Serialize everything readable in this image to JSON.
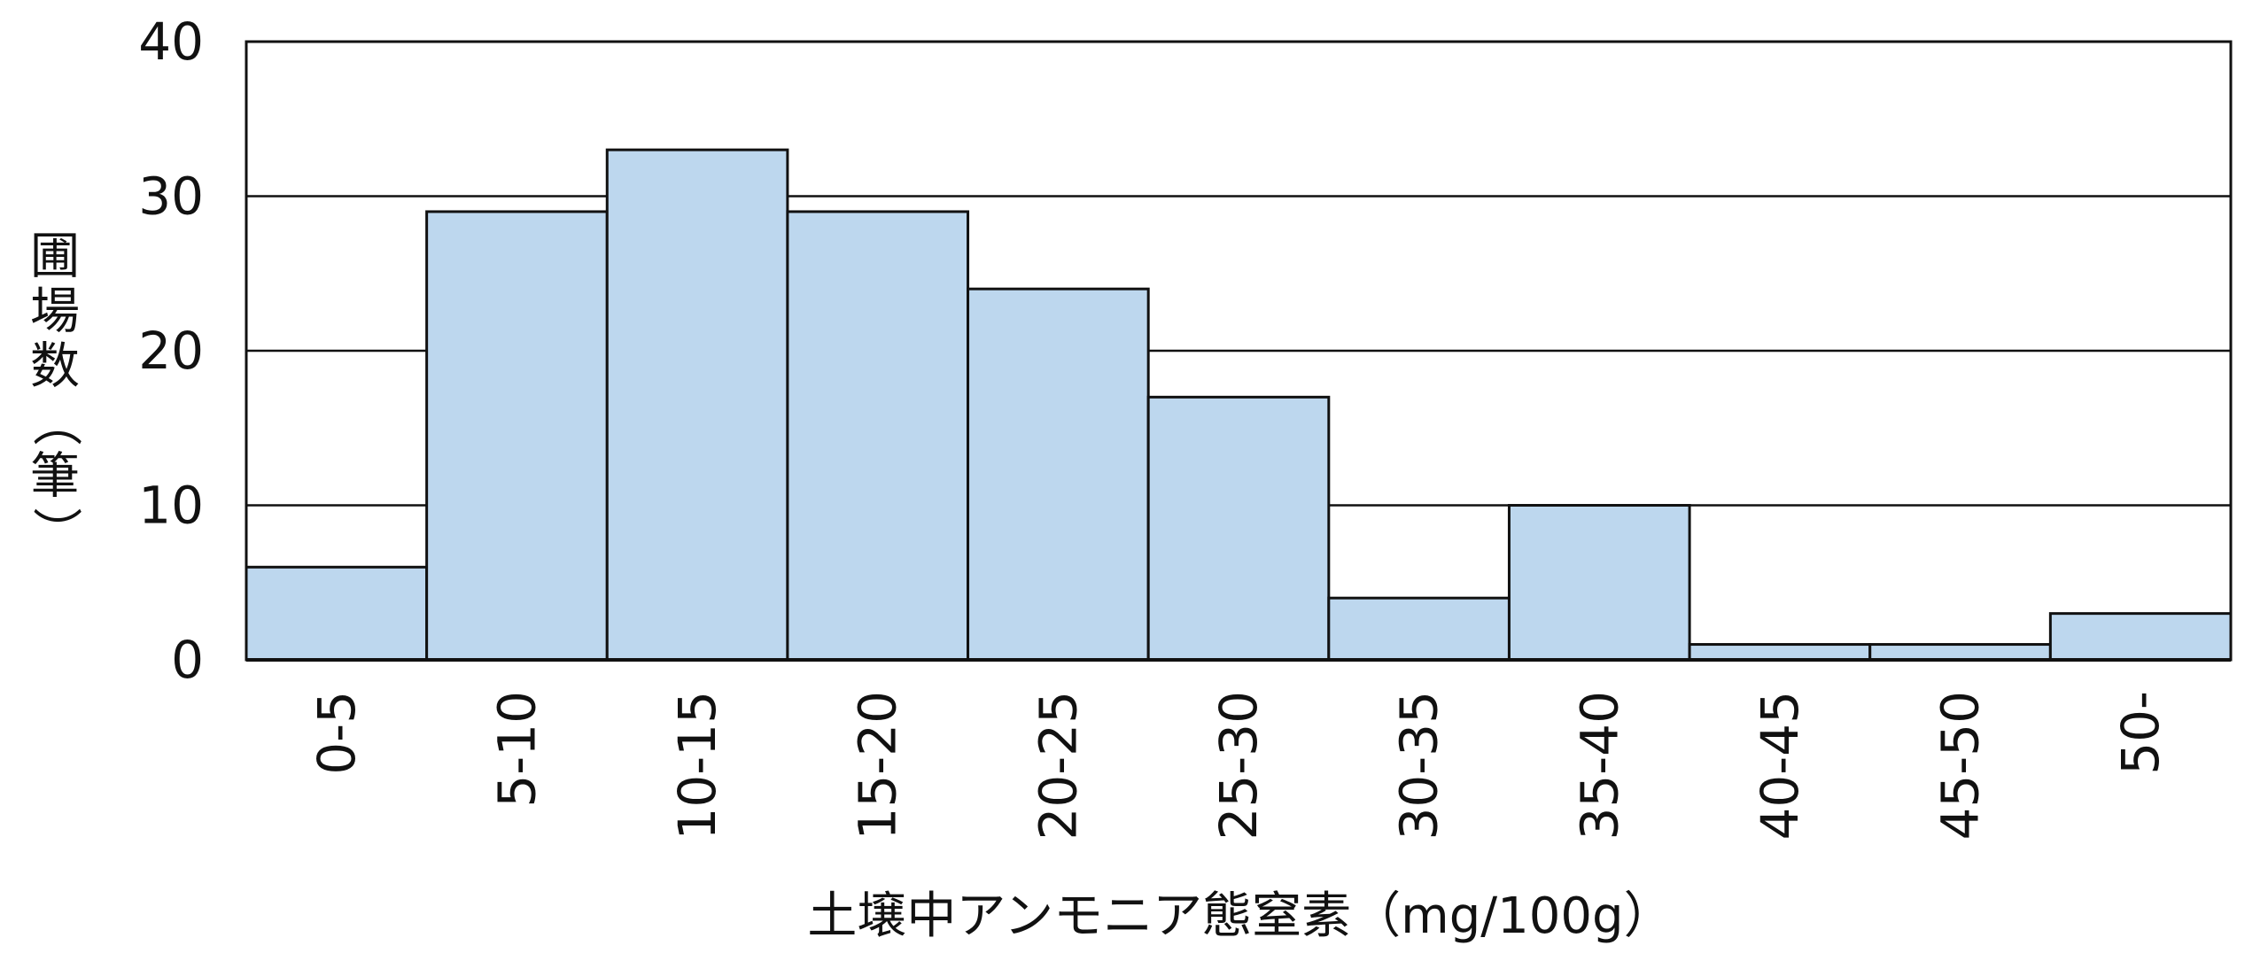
{
  "chart_data": {
    "type": "bar",
    "categories": [
      "0-5",
      "5-10",
      "10-15",
      "15-20",
      "20-25",
      "25-30",
      "30-35",
      "35-40",
      "40-45",
      "45-50",
      "50-"
    ],
    "values": [
      6,
      29,
      33,
      29,
      24,
      17,
      4,
      10,
      1,
      1,
      3
    ],
    "xlabel": "土壌中アンモニア態窒素（mg/100g）",
    "ylabel": "圃場数（筆）",
    "ylim": [
      0,
      40
    ],
    "yticks": [
      0,
      10,
      20,
      30,
      40
    ],
    "grid": true,
    "bar_color": "#bdd7ee",
    "bar_edge_color": "#111111",
    "grid_color": "#111111"
  }
}
